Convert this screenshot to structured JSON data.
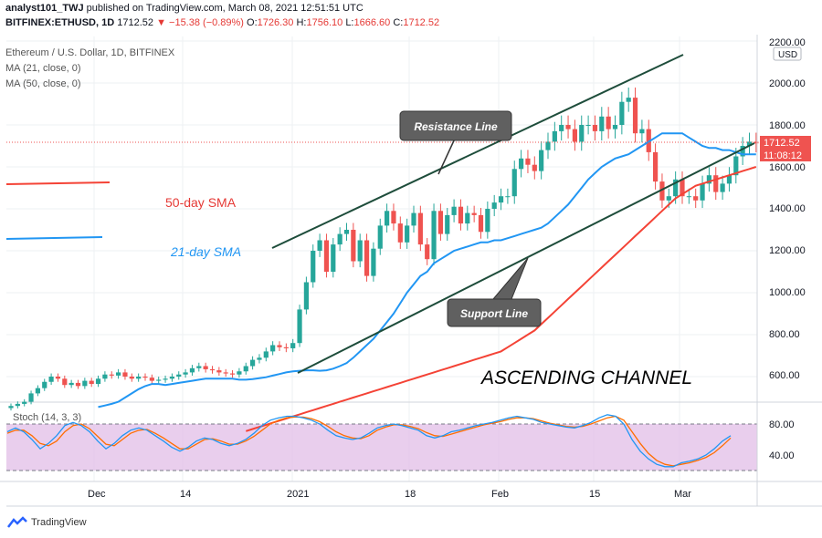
{
  "header": {
    "line1_user": "analyst101_TWJ",
    "line1_rest": " published on TradingView.com, March 08, 2021 12:51:51 UTC",
    "symbol": "BITFINEX:ETHUSD, 1D",
    "price": "1712.52",
    "change": "▼ −15.38 (−0.89%)",
    "o_label": "O:",
    "o_val": "1726.30",
    "h_label": "H:",
    "h_val": "1756.10",
    "l_label": "L:",
    "l_val": "1666.60",
    "c_label": "C:",
    "c_val": "1712.52"
  },
  "legend": {
    "title": "Ethereum / U.S. Dollar, 1D, BITFINEX",
    "ma21": "MA (21, close, 0)",
    "ma50": "MA (50, close, 0)"
  },
  "annotations": {
    "resistance": "Resistance Line",
    "support": "Support Line",
    "sma50": "50-day SMA",
    "sma21": "21-day SMA",
    "channel": "ASCENDING CHANNEL"
  },
  "price_axis": {
    "currency": "USD",
    "last_price": "1712.52",
    "countdown": "11:08:12",
    "ticks": [
      "2200.00",
      "2000.00",
      "1800.00",
      "1600.00",
      "1400.00",
      "1200.00",
      "1000.00",
      "800.00",
      "600.00"
    ]
  },
  "stoch": {
    "label": "Stoch (14, 3, 3)",
    "ticks": [
      "80.00",
      "40.00"
    ],
    "upper_band": 80,
    "lower_band": 20
  },
  "time_axis": [
    "Dec",
    "14",
    "2021",
    "18",
    "Feb",
    "15",
    "Mar"
  ],
  "footer": {
    "brand": "TradingView"
  },
  "colors": {
    "up": "#26a69a",
    "down": "#ef5350",
    "ma21": "#2196f3",
    "ma50": "#f44336",
    "channel": "#1e4d3b",
    "stoch_k": "#2196f3",
    "stoch_d": "#ff6d00",
    "stoch_fill": "#e1bee7",
    "grid": "#eef0f3"
  },
  "chart_data": {
    "type": "candlestick",
    "title": "Ethereum / U.S. Dollar, 1D, BITFINEX",
    "ylim": [
      450,
      2230
    ],
    "x_start": "2020-11-20",
    "closes": [
      460,
      470,
      480,
      520,
      545,
      575,
      600,
      590,
      560,
      570,
      555,
      580,
      565,
      590,
      610,
      605,
      620,
      600,
      590,
      600,
      595,
      580,
      585,
      590,
      600,
      610,
      620,
      640,
      650,
      635,
      630,
      620,
      615,
      610,
      625,
      650,
      680,
      690,
      720,
      750,
      740,
      735,
      760,
      920,
      1050,
      1200,
      1250,
      1100,
      1230,
      1280,
      1300,
      1150,
      1250,
      1080,
      1210,
      1320,
      1390,
      1330,
      1240,
      1320,
      1380,
      1230,
      1160,
      1390,
      1280,
      1370,
      1410,
      1330,
      1380,
      1370,
      1290,
      1400,
      1430,
      1460,
      1460,
      1590,
      1640,
      1610,
      1580,
      1680,
      1720,
      1770,
      1800,
      1780,
      1720,
      1800,
      1800,
      1770,
      1840,
      1780,
      1800,
      1910,
      1930,
      1760,
      1780,
      1670,
      1530,
      1440,
      1460,
      1540,
      1460,
      1460,
      1440,
      1520,
      1560,
      1480,
      1520,
      1560,
      1650,
      1700,
      1720,
      1712
    ],
    "ma21": [
      455,
      462,
      470,
      480,
      500,
      520,
      540,
      555,
      565,
      565,
      560,
      565,
      570,
      575,
      580,
      585,
      590,
      590,
      590,
      590,
      590,
      585,
      585,
      588,
      592,
      597,
      605,
      612,
      620,
      625,
      628,
      630,
      630,
      628,
      630,
      638,
      650,
      665,
      690,
      720,
      750,
      780,
      820,
      860,
      900,
      950,
      1000,
      1040,
      1080,
      1100,
      1140,
      1160,
      1180,
      1200,
      1210,
      1220,
      1230,
      1240,
      1240,
      1250,
      1250,
      1260,
      1270,
      1280,
      1290,
      1300,
      1310,
      1330,
      1360,
      1390,
      1420,
      1460,
      1500,
      1540,
      1570,
      1600,
      1620,
      1640,
      1650,
      1660,
      1680,
      1700,
      1720,
      1740,
      1760,
      1760,
      1760,
      1760,
      1740,
      1720,
      1700,
      1690,
      1690,
      1680,
      1680,
      1670,
      1660,
      1660,
      1660
    ],
    "ma50": [
      340,
      350,
      360,
      370,
      380,
      390,
      400,
      410,
      420,
      430,
      440,
      450,
      460,
      470,
      480,
      490,
      500,
      510,
      520,
      530,
      540,
      550,
      560,
      570,
      580,
      590,
      600,
      610,
      620,
      630,
      640,
      650,
      660,
      670,
      680,
      690,
      700,
      710,
      720,
      740,
      760,
      780,
      800,
      820,
      850,
      880,
      910,
      940,
      970,
      1000,
      1030,
      1060,
      1090,
      1120,
      1150,
      1180,
      1210,
      1240,
      1270,
      1300,
      1330,
      1360,
      1390,
      1420,
      1450,
      1470,
      1490,
      1510,
      1520,
      1530,
      1540,
      1550,
      1560,
      1570,
      1580,
      1590,
      1600
    ],
    "stoch_k": [
      70,
      75,
      70,
      60,
      48,
      55,
      65,
      78,
      82,
      78,
      70,
      58,
      48,
      55,
      65,
      72,
      75,
      72,
      65,
      58,
      50,
      45,
      50,
      58,
      62,
      60,
      55,
      52,
      55,
      60,
      68,
      78,
      85,
      88,
      90,
      90,
      88,
      85,
      80,
      72,
      65,
      62,
      60,
      62,
      68,
      75,
      78,
      80,
      78,
      75,
      72,
      65,
      62,
      65,
      70,
      72,
      75,
      78,
      80,
      82,
      85,
      88,
      90,
      88,
      86,
      82,
      80,
      78,
      76,
      75,
      78,
      82,
      88,
      92,
      90,
      80,
      60,
      45,
      35,
      28,
      25,
      25,
      30,
      32,
      35,
      40,
      48,
      58,
      65
    ],
    "stoch_d": [
      68,
      72,
      72,
      65,
      55,
      52,
      58,
      70,
      78,
      80,
      74,
      64,
      54,
      52,
      60,
      68,
      72,
      73,
      68,
      62,
      55,
      48,
      48,
      54,
      60,
      61,
      58,
      54,
      54,
      58,
      64,
      72,
      80,
      85,
      88,
      89,
      89,
      87,
      83,
      77,
      70,
      65,
      62,
      61,
      65,
      72,
      76,
      79,
      79,
      77,
      74,
      69,
      65,
      64,
      67,
      70,
      73,
      76,
      79,
      81,
      83,
      86,
      88,
      88,
      87,
      84,
      81,
      79,
      77,
      76,
      77,
      80,
      84,
      88,
      90,
      85,
      70,
      55,
      42,
      33,
      28,
      26,
      28,
      30,
      33,
      37,
      43,
      52,
      62
    ]
  }
}
